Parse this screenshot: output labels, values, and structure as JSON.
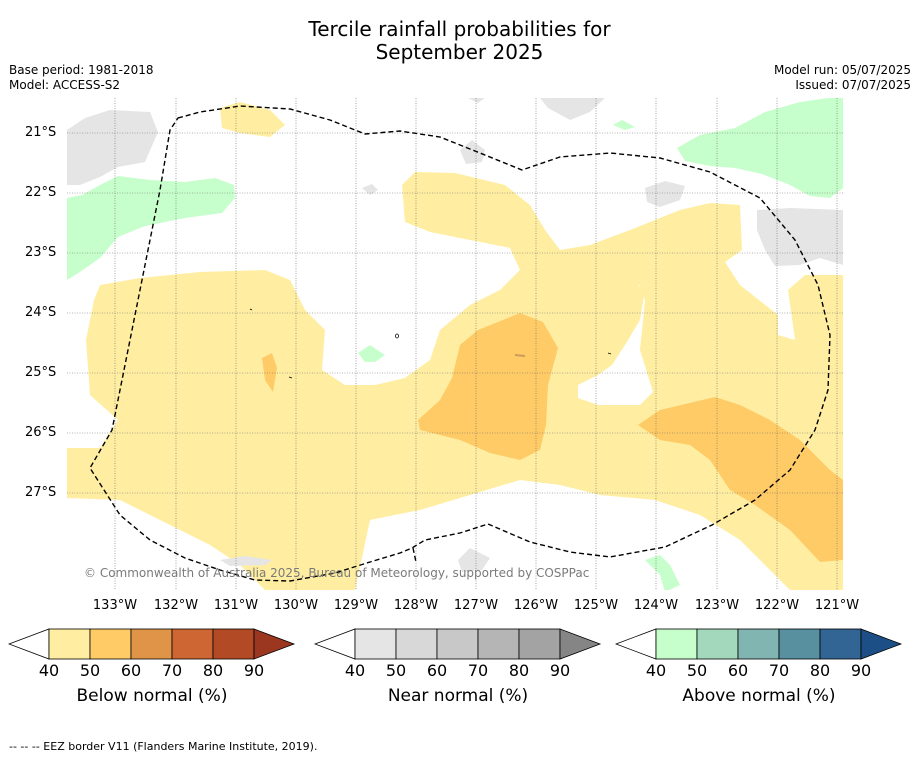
{
  "title_line1": "Tercile rainfall probabilities for",
  "title_line2": "September 2025",
  "meta_left": [
    "Base period: 1981-2018",
    "Model: ACCESS-S2"
  ],
  "meta_right": [
    "Model run: 05/07/2025",
    "Issued: 07/07/2025"
  ],
  "latitudes": [
    "21°S",
    "22°S",
    "23°S",
    "24°S",
    "25°S",
    "26°S",
    "27°S"
  ],
  "longitudes": [
    "133°W",
    "132°W",
    "131°W",
    "130°W",
    "129°W",
    "128°W",
    "127°W",
    "126°W",
    "125°W",
    "124°W",
    "123°W",
    "122°W",
    "121°W"
  ],
  "copyright": "© Commonwealth of Australia 2025, Bureau of Meteorology, supported by COSPPac",
  "colorbars": [
    {
      "title": "Below normal (%)",
      "ticks": [
        "40",
        "50",
        "60",
        "70",
        "80",
        "90"
      ],
      "colors": [
        "#ffffff",
        "#ffeea1",
        "#fecb67",
        "#e09447",
        "#cd6633",
        "#b34a26",
        "#9b3620"
      ]
    },
    {
      "title": "Near normal (%)",
      "ticks": [
        "40",
        "50",
        "60",
        "70",
        "80",
        "90"
      ],
      "colors": [
        "#ffffff",
        "#e5e5e5",
        "#d8d8d8",
        "#c8c8c8",
        "#b5b5b5",
        "#a3a3a3",
        "#858585"
      ]
    },
    {
      "title": "Above normal (%)",
      "ticks": [
        "40",
        "50",
        "60",
        "70",
        "80",
        "90"
      ],
      "colors": [
        "#ffffff",
        "#c6ffcb",
        "#a3d8bd",
        "#80b5b1",
        "#5890a0",
        "#326494",
        "#1b4f86"
      ]
    }
  ],
  "colors": {
    "below_50": "#ffeea1",
    "below_60": "#fecb67",
    "near_50": "#e5e5e5",
    "above_50": "#c6ffcb",
    "eez_border": "#000000"
  },
  "footer": "--  --  -- EEZ border V11 (Flanders Marine Institute, 2019)."
}
